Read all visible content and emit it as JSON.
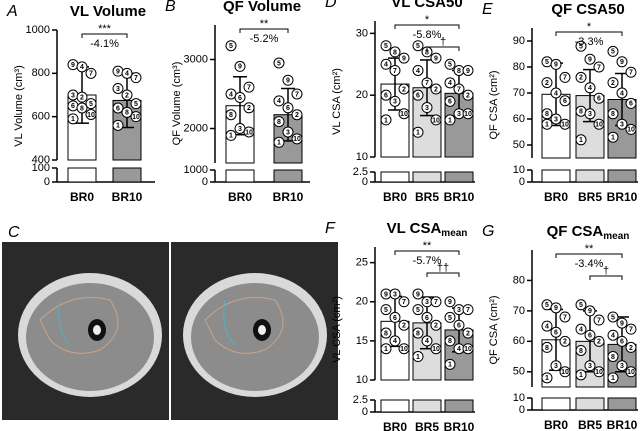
{
  "chart_data": [
    {
      "type": "bar",
      "panel": "A",
      "title": "VL Volume",
      "y_label": "VL Volume (cm³)",
      "categories": [
        "BR0",
        "BR10"
      ],
      "values": [
        700,
        675
      ],
      "errors": [
        130,
        125
      ],
      "colors": [
        "#ffffff",
        "#999999"
      ],
      "ylim": [
        400,
        1000
      ],
      "yticks": [
        400,
        600,
        800,
        1000
      ],
      "break_ylim": [
        0,
        100
      ],
      "break_yticks": [
        0,
        100
      ],
      "subjects": [
        9,
        4,
        7,
        3,
        2,
        5,
        6,
        8,
        10,
        1
      ],
      "points": [
        [
          840,
          830,
          800,
          700,
          690,
          660,
          650,
          640,
          610,
          590
        ],
        [
          810,
          800,
          780,
          730,
          700,
          660,
          640,
          620,
          600,
          560
        ]
      ],
      "brackets": [
        {
          "between": [
            "BR0",
            "BR10"
          ],
          "stars": "***",
          "change": "-4.1%"
        }
      ]
    },
    {
      "type": "bar",
      "panel": "B",
      "title": "QF Volume",
      "y_label": "QF Volume (cm³)",
      "categories": [
        "BR0",
        "BR10"
      ],
      "values": [
        2330,
        2200
      ],
      "errors": [
        420,
        380
      ],
      "colors": [
        "#ffffff",
        "#999999"
      ],
      "ylim": [
        1500,
        3500
      ],
      "yticks": [
        2000,
        3000
      ],
      "break_ylim": [
        0,
        1000
      ],
      "break_yticks": [
        0,
        1000
      ],
      "subjects": [
        5,
        9,
        7,
        4,
        6,
        2,
        8,
        3,
        10,
        1
      ],
      "points": [
        [
          3200,
          2900,
          2600,
          2500,
          2450,
          2300,
          2200,
          2000,
          1950,
          1900
        ],
        [
          2950,
          2700,
          2500,
          2400,
          2300,
          2200,
          2100,
          1950,
          1850,
          1800
        ]
      ],
      "brackets": [
        {
          "between": [
            "BR0",
            "BR10"
          ],
          "stars": "**",
          "change": "-5.2%"
        }
      ]
    },
    {
      "type": "bar",
      "panel": "D",
      "title": "VL CSA50",
      "y_label": "VL CSA (cm²)",
      "categories": [
        "BR0",
        "BR5",
        "BR10"
      ],
      "values": [
        21.8,
        21.2,
        20.3
      ],
      "errors": [
        4.2,
        4.5,
        3.7
      ],
      "colors": [
        "#ffffff",
        "#dddddd",
        "#999999"
      ],
      "ylim": [
        10,
        32
      ],
      "yticks": [
        10,
        20,
        30
      ],
      "break_ylim": [
        0,
        2.5
      ],
      "break_yticks": [
        0,
        2.5
      ],
      "subjects": [
        5,
        8,
        9,
        4,
        7,
        2,
        6,
        3,
        10,
        1
      ],
      "points": [
        [
          28,
          27,
          26,
          25,
          24,
          21,
          20,
          19,
          17,
          16
        ],
        [
          28,
          27,
          26,
          24,
          22,
          21,
          20,
          18,
          16,
          14
        ],
        [
          25,
          24,
          24,
          22,
          21,
          20,
          19,
          17,
          17,
          16
        ]
      ],
      "brackets": [
        {
          "between": [
            "BR0",
            "BR10"
          ],
          "stars": "*",
          "change": "-5.8%"
        },
        {
          "between": [
            "BR5",
            "BR10"
          ],
          "stars": "†"
        }
      ]
    },
    {
      "type": "bar",
      "panel": "E",
      "title": "QF CSA50",
      "y_label": "QF CSA (cm²)",
      "categories": [
        "BR0",
        "BR5",
        "BR10"
      ],
      "values": [
        69.5,
        69,
        67.5
      ],
      "errors": [
        12,
        10,
        10
      ],
      "colors": [
        "#ffffff",
        "#dddddd",
        "#999999"
      ],
      "ylim": [
        45,
        95
      ],
      "yticks": [
        50,
        60,
        70,
        80,
        90
      ],
      "break_ylim": [
        0,
        10
      ],
      "break_yticks": [
        0,
        10
      ],
      "subjects": [
        5,
        9,
        7,
        2,
        4,
        6,
        8,
        3,
        10,
        1
      ],
      "points": [
        [
          82,
          81,
          76,
          74,
          70,
          67,
          62,
          60,
          58,
          58
        ],
        [
          88,
          83,
          80,
          76,
          72,
          68,
          63,
          62,
          58,
          52
        ],
        [
          86,
          82,
          78,
          74,
          70,
          66,
          62,
          58,
          56,
          53
        ]
      ],
      "brackets": [
        {
          "between": [
            "BR0",
            "BR10"
          ],
          "stars": "*",
          "change": "-3.3%"
        }
      ]
    },
    {
      "type": "bar",
      "panel": "F",
      "title": "VL CSA",
      "title_sub": "mean",
      "y_label": "VL CSA (cm²)",
      "categories": [
        "BR0",
        "BR5",
        "BR10"
      ],
      "values": [
        17.5,
        17.3,
        16.4
      ],
      "errors": [
        3.2,
        3.3,
        2.8
      ],
      "colors": [
        "#ffffff",
        "#dddddd",
        "#999999"
      ],
      "ylim": [
        10,
        27
      ],
      "yticks": [
        10,
        15,
        20,
        25
      ],
      "break_ylim": [
        0,
        2.5
      ],
      "break_yticks": [
        0,
        2.5
      ],
      "subjects": [
        9,
        3,
        7,
        5,
        6,
        2,
        8,
        4,
        10,
        1
      ],
      "points": [
        [
          21,
          21,
          20,
          19,
          18,
          17,
          16,
          15,
          14,
          14
        ],
        [
          21,
          20,
          20,
          19,
          18,
          17,
          16,
          15,
          14,
          13
        ],
        [
          20,
          19,
          19,
          18,
          17,
          16,
          15,
          14,
          14,
          12
        ]
      ],
      "brackets": [
        {
          "between": [
            "BR0",
            "BR10"
          ],
          "stars": "**",
          "change": "-5.7%"
        },
        {
          "between": [
            "BR5",
            "BR10"
          ],
          "stars": "††"
        }
      ]
    },
    {
      "type": "bar",
      "panel": "G",
      "title": "QF CSA",
      "title_sub": "mean",
      "y_label": "QF CSA (cm²)",
      "categories": [
        "BR0",
        "BR5",
        "BR10"
      ],
      "values": [
        60.5,
        60,
        59
      ],
      "errors": [
        10,
        10,
        9
      ],
      "colors": [
        "#ffffff",
        "#dddddd",
        "#999999"
      ],
      "ylim": [
        45,
        90
      ],
      "yticks": [
        50,
        60,
        70,
        80
      ],
      "break_ylim": [
        0,
        10
      ],
      "break_yticks": [
        0,
        10
      ],
      "subjects": [
        5,
        9,
        7,
        4,
        6,
        2,
        8,
        3,
        10,
        1
      ],
      "points": [
        [
          72,
          71,
          68,
          65,
          63,
          60,
          58,
          52,
          50,
          48
        ],
        [
          72,
          70,
          67,
          64,
          62,
          60,
          57,
          52,
          50,
          49
        ],
        [
          68,
          66,
          64,
          62,
          60,
          58,
          55,
          52,
          50,
          48
        ]
      ],
      "brackets": [
        {
          "between": [
            "BR0",
            "BR10"
          ],
          "stars": "**",
          "change": "-3.4%"
        },
        {
          "between": [
            "BR5",
            "BR10"
          ],
          "stars": "†"
        }
      ]
    }
  ],
  "image_panel": {
    "panel": "C"
  }
}
